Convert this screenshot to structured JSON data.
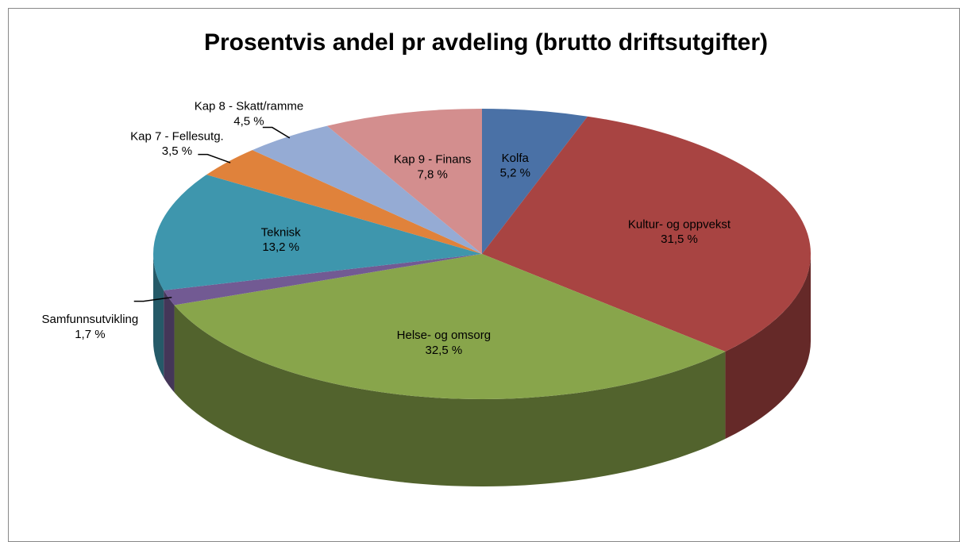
{
  "chart_data": {
    "type": "pie3d",
    "title": "Prosentvis andel pr avdeling (brutto driftsutgifter)",
    "categories": [
      "Kolfa",
      "Kultur- og oppvekst",
      "Helse- og omsorg",
      "Samfunnsutvikling",
      "Teknisk",
      "Kap 7 - Fellesutg.",
      "Kap 8 - Skatt/ramme",
      "Kap 9 - Finans"
    ],
    "values": [
      5.2,
      31.5,
      32.5,
      1.7,
      13.2,
      3.5,
      4.5,
      7.8
    ],
    "value_labels": [
      "5,2 %",
      "31,5 %",
      "32,5 %",
      "1,7 %",
      "13,2 %",
      "3,5 %",
      "4,5 %",
      "7,8 %"
    ],
    "colors": [
      "#4a71a6",
      "#a84442",
      "#88a54b",
      "#725a93",
      "#3e96ad",
      "#e0823b",
      "#95abd4",
      "#d38e8e"
    ]
  }
}
